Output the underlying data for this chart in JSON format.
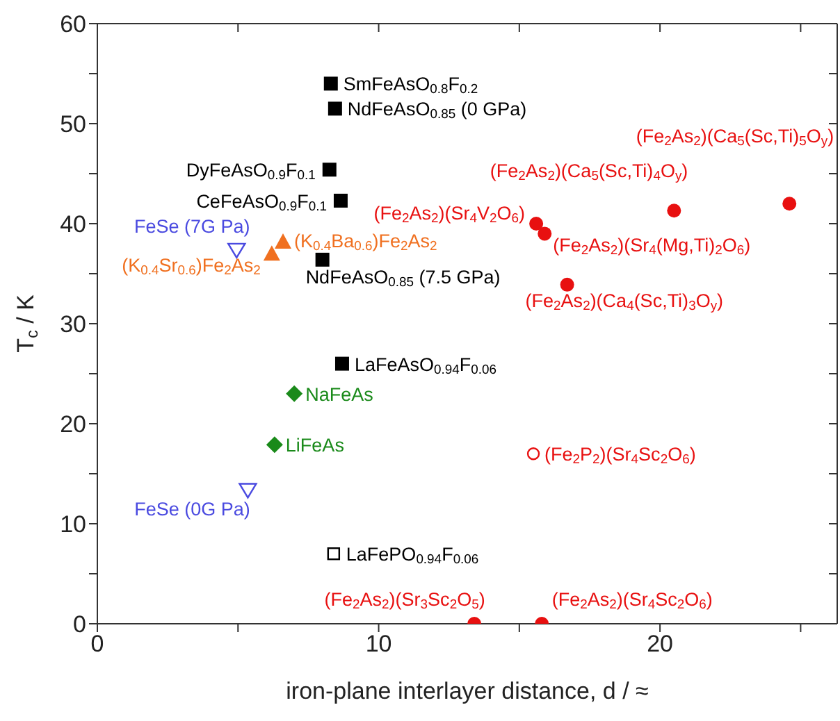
{
  "chart_data": {
    "type": "scatter",
    "xlabel": "iron-plane interlayer distance, d / ≈",
    "ylabel": "T$_{c}$ / K",
    "xlim": [
      0,
      26.3
    ],
    "ylim": [
      0,
      60
    ],
    "xticks": [
      0,
      {
        "value": 5,
        "label": null
      },
      10,
      {
        "value": 15,
        "label": null
      },
      20,
      {
        "value": 25,
        "label": null
      }
    ],
    "yticks": [
      0,
      {
        "value": 5,
        "label": null
      },
      10,
      {
        "value": 15,
        "label": null
      },
      20,
      {
        "value": 25,
        "label": null
      },
      30,
      {
        "value": 35,
        "label": null
      },
      40,
      {
        "value": 45,
        "label": null
      },
      50,
      {
        "value": 55,
        "label": null
      },
      60
    ],
    "grid": false,
    "legend": false,
    "series": [
      {
        "name": "SmFeAsO$_{0.8}$F$_{0.2}$",
        "color": "#000000",
        "marker": "square",
        "x": [
          8.3
        ],
        "values": [
          54
        ]
      },
      {
        "name": "NdFeAsO$_{0.85}$ (0 GPa)",
        "color": "#000000",
        "marker": "square",
        "x": [
          8.45
        ],
        "values": [
          51.5
        ]
      },
      {
        "name": "DyFeAsO$_{0.9}$F$_{0.1}$",
        "color": "#000000",
        "marker": "square",
        "x": [
          8.25
        ],
        "values": [
          45.4
        ]
      },
      {
        "name": "CeFeAsO$_{0.9}$F$_{0.1}$",
        "color": "#000000",
        "marker": "square",
        "x": [
          8.65
        ],
        "values": [
          42.3
        ]
      },
      {
        "name": "NdFeAsO$_{0.85}$ (7.5 GPa)",
        "color": "#000000",
        "marker": "square",
        "x": [
          8.0
        ],
        "values": [
          36.4
        ]
      },
      {
        "name": "LaFeAsO$_{0.94}$F$_{0.06}$",
        "color": "#000000",
        "marker": "square",
        "x": [
          8.7
        ],
        "values": [
          26
        ]
      },
      {
        "name": "LaFePO$_{0.94}$F$_{0.06}$",
        "color": "#000000",
        "marker": "square-open",
        "x": [
          8.4
        ],
        "values": [
          7
        ]
      },
      {
        "name": "FeSe (7G Pa)",
        "color": "#4a4ae0",
        "marker": "triangle-down-open",
        "x": [
          4.95
        ],
        "values": [
          37.3
        ]
      },
      {
        "name": "FeSe (0G Pa)",
        "color": "#4a4ae0",
        "marker": "triangle-down-open",
        "x": [
          5.35
        ],
        "values": [
          13.3
        ]
      },
      {
        "name": "(K$_{0.4}$Ba$_{0.6}$)Fe$_{2}$As$_{2}$",
        "color": "#f07020",
        "marker": "triangle",
        "x": [
          6.6
        ],
        "values": [
          38.2
        ]
      },
      {
        "name": "(K$_{0.4}$Sr$_{0.6}$)Fe$_{2}$As$_{2}$",
        "color": "#f07020",
        "marker": "triangle",
        "x": [
          6.2
        ],
        "values": [
          37
        ]
      },
      {
        "name": "NaFeAs",
        "color": "#1a8a1a",
        "marker": "diamond",
        "x": [
          7.0
        ],
        "values": [
          23
        ]
      },
      {
        "name": "LiFeAs",
        "color": "#1a8a1a",
        "marker": "diamond",
        "x": [
          6.3
        ],
        "values": [
          17.9
        ]
      },
      {
        "name": "(Fe$_{2}$As$_{2}$)(Sr$_{3}$Sc$_{2}$O$_{5}$)",
        "color": "#e81010",
        "marker": "circle",
        "x": [
          13.4
        ],
        "values": [
          0
        ]
      },
      {
        "name": "(Fe$_{2}$As$_{2}$)(Sr$_{4}$Sc$_{2}$O$_{6}$)",
        "color": "#e81010",
        "marker": "circle",
        "x": [
          15.8
        ],
        "values": [
          0
        ]
      },
      {
        "name": "(Fe$_{2}$P$_{2}$)(Sr$_{4}$Sc$_{2}$O$_{6}$)",
        "color": "#e81010",
        "marker": "circle-open",
        "x": [
          15.5
        ],
        "values": [
          17
        ]
      },
      {
        "name": "(Fe$_{2}$As$_{2}$)(Sr$_{4}$V$_{2}$O$_{6}$)",
        "color": "#e81010",
        "marker": "circle",
        "x": [
          15.6
        ],
        "values": [
          40
        ]
      },
      {
        "name": "(Fe$_{2}$As$_{2}$)(Sr$_{4}$(Mg,Ti)$_{2}$O$_{6}$)",
        "color": "#e81010",
        "marker": "circle",
        "x": [
          15.9
        ],
        "values": [
          39
        ]
      },
      {
        "name": "(Fe$_{2}$As$_{2}$)(Ca$_{4}$(Sc,Ti)$_{3}$O$_{y}$)",
        "color": "#e81010",
        "marker": "circle",
        "x": [
          16.7
        ],
        "values": [
          33.9
        ]
      },
      {
        "name": "(Fe$_{2}$As$_{2}$)(Ca$_{5}$(Sc,Ti)$_{4}$O$_{y}$)",
        "color": "#e81010",
        "marker": "circle",
        "x": [
          20.5
        ],
        "values": [
          41.3
        ]
      },
      {
        "name": "(Fe$_{2}$As$_{2}$)(Ca$_{5}$(Sc,Ti)$_{5}$O$_{y}$)",
        "color": "#e81010",
        "marker": "circle",
        "x": [
          24.6
        ],
        "values": [
          42
        ]
      }
    ]
  }
}
